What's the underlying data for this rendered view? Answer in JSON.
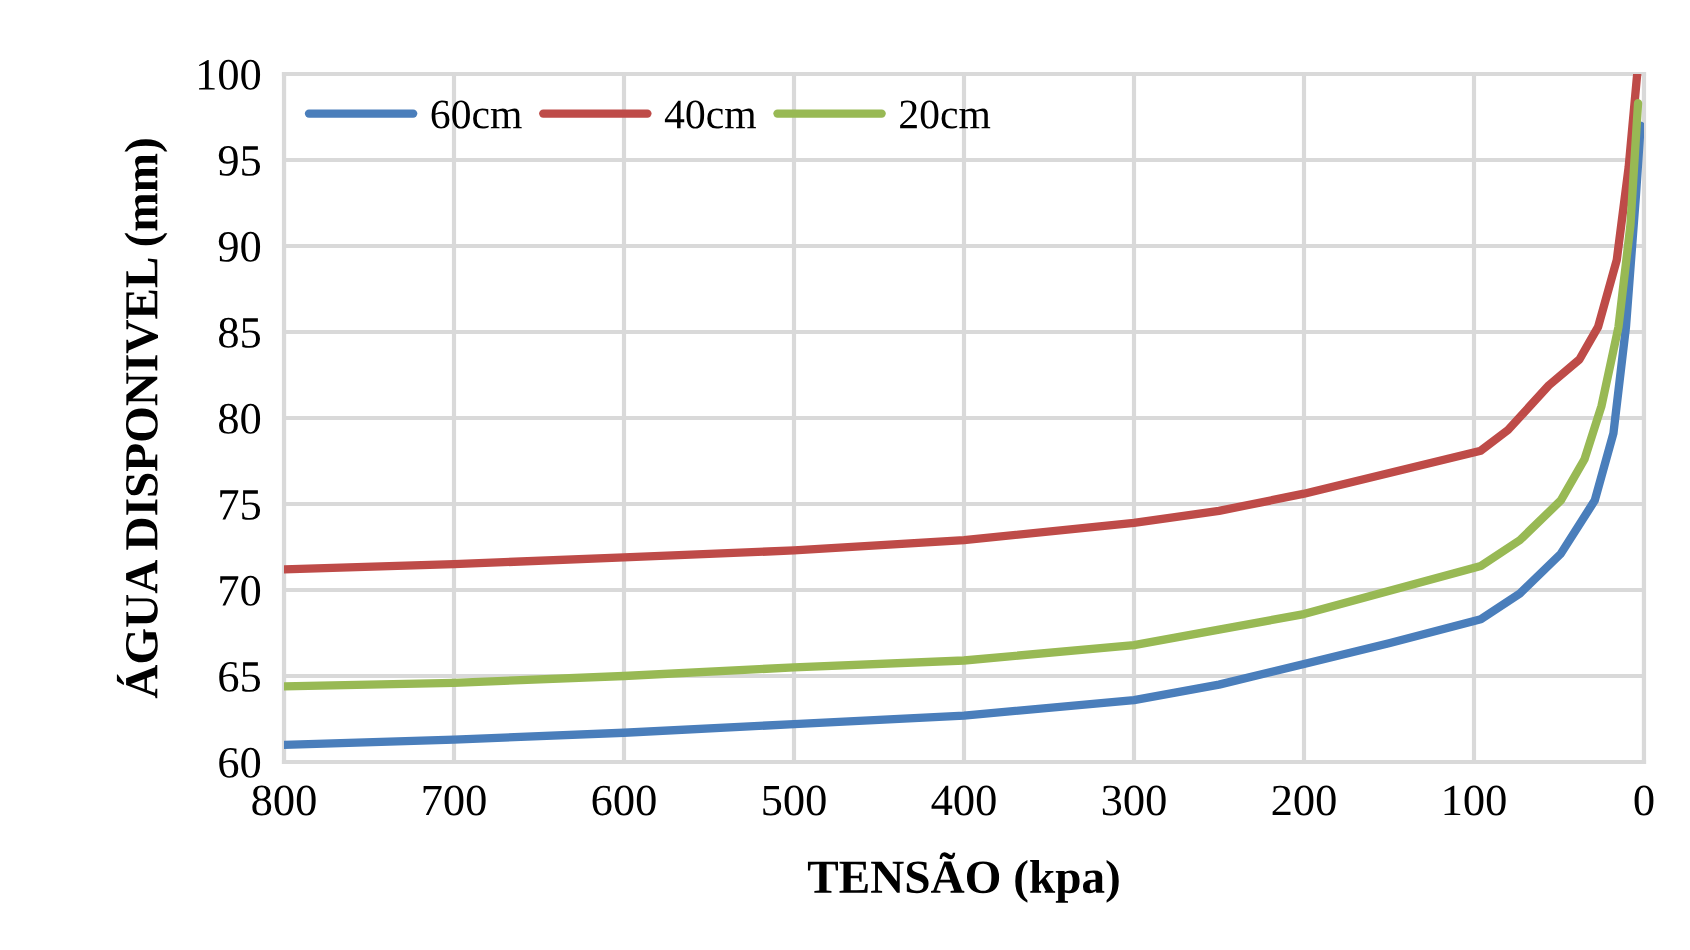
{
  "chart_data": {
    "type": "line",
    "xlabel": "TENSÃO (kpa)",
    "ylabel": "ÁGUA DISPONIVEL (mm)",
    "xlim": [
      800,
      0
    ],
    "ylim": [
      60,
      100
    ],
    "xticks": [
      800,
      700,
      600,
      500,
      400,
      300,
      200,
      100,
      0
    ],
    "yticks": [
      60,
      65,
      70,
      75,
      80,
      85,
      90,
      95,
      100
    ],
    "grid": true,
    "legend": "top left",
    "marker": "none",
    "line_style": "solid",
    "series": [
      {
        "name": "60cm",
        "color": "#4a7ebb",
        "x": [
          800,
          700,
          600,
          500,
          400,
          300,
          250,
          200,
          150,
          96,
          73,
          49,
          29,
          18,
          10.6,
          4.7,
          2
        ],
        "values": [
          61.0,
          61.3,
          61.7,
          62.2,
          62.7,
          63.6,
          64.5,
          65.7,
          66.9,
          68.3,
          69.8,
          72.1,
          75.2,
          79.1,
          85.3,
          93,
          97
        ]
      },
      {
        "name": "40cm",
        "color": "#be4b48",
        "x": [
          800,
          700,
          600,
          500,
          400,
          300,
          250,
          200,
          96,
          80,
          56,
          38,
          27,
          16,
          9,
          4
        ],
        "values": [
          71.2,
          71.5,
          71.9,
          72.3,
          72.9,
          73.9,
          74.6,
          75.6,
          78.1,
          79.3,
          81.9,
          83.4,
          85.3,
          89.2,
          94.6,
          100
        ]
      },
      {
        "name": "20cm",
        "color": "#98b954",
        "x": [
          800,
          700,
          600,
          500,
          400,
          300,
          250,
          200,
          96,
          73,
          49,
          35,
          25,
          15,
          8,
          3.5
        ],
        "values": [
          64.4,
          64.6,
          65.0,
          65.5,
          65.9,
          66.8,
          67.7,
          68.6,
          71.4,
          72.9,
          75.2,
          77.6,
          80.7,
          85.3,
          91.2,
          98.3
        ]
      }
    ]
  }
}
